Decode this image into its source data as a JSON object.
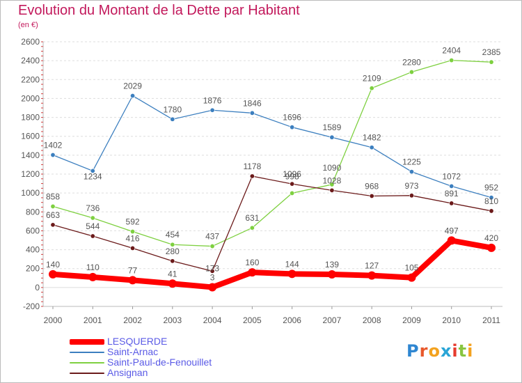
{
  "chart_data": {
    "type": "line",
    "title": "Evolution du Montant de la Dette par Habitant",
    "subtitle": "(en €)",
    "x": [
      "2000",
      "2001",
      "2002",
      "2003",
      "2004",
      "2005",
      "2006",
      "2007",
      "2008",
      "2009",
      "2010",
      "2011"
    ],
    "ylim": [
      -200,
      2600
    ],
    "yticks": [
      -200,
      0,
      200,
      400,
      600,
      800,
      1000,
      1200,
      1400,
      1600,
      1800,
      2000,
      2200,
      2400,
      2600
    ],
    "grid": "horizontal",
    "legend_position": "bottom-left",
    "series": [
      {
        "name": "LESQUERDE",
        "color": "#ff0000",
        "values": [
          140,
          110,
          77,
          41,
          3,
          160,
          144,
          139,
          127,
          105,
          497,
          420
        ]
      },
      {
        "name": "Saint-Arnac",
        "color": "#3c7fbf",
        "values": [
          1402,
          1234,
          2029,
          1780,
          1876,
          1846,
          1696,
          1589,
          1482,
          1225,
          1072,
          952
        ]
      },
      {
        "name": "Saint-Paul-de-Fenouillet",
        "color": "#7ed040",
        "values": [
          858,
          736,
          592,
          454,
          437,
          631,
          998,
          1090,
          2109,
          2280,
          2404,
          2385
        ]
      },
      {
        "name": "Ansignan",
        "color": "#6b1a1a",
        "values": [
          663,
          544,
          416,
          280,
          173,
          1178,
          1096,
          1028,
          968,
          973,
          891,
          810
        ]
      }
    ]
  },
  "logo": {
    "text": "Proxiti",
    "letter_colors": [
      "#2e86d1",
      "#e8582b",
      "#f3a21f",
      "#2aa5d6",
      "#e63b2e",
      "#88c540",
      "#f3a21f"
    ]
  }
}
